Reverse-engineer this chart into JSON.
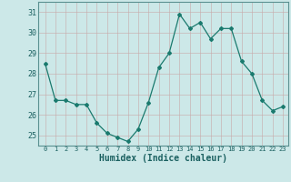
{
  "x": [
    0,
    1,
    2,
    3,
    4,
    5,
    6,
    7,
    8,
    9,
    10,
    11,
    12,
    13,
    14,
    15,
    16,
    17,
    18,
    19,
    20,
    21,
    22,
    23
  ],
  "y": [
    28.5,
    26.7,
    26.7,
    26.5,
    26.5,
    25.6,
    25.1,
    24.9,
    24.7,
    25.3,
    26.6,
    28.3,
    29.0,
    30.9,
    30.2,
    30.5,
    29.7,
    30.2,
    30.2,
    28.6,
    28.0,
    26.7,
    26.2,
    26.4
  ],
  "line_color": "#1a7a6e",
  "marker": "D",
  "marker_size": 2.0,
  "bg_color": "#cce8e8",
  "grid_color_major": "#b0c8c8",
  "grid_color_minor": "#d4e8e8",
  "xlabel": "Humidex (Indice chaleur)",
  "ylim": [
    24.5,
    31.5
  ],
  "yticks": [
    25,
    26,
    27,
    28,
    29,
    30,
    31
  ],
  "xticks": [
    0,
    1,
    2,
    3,
    4,
    5,
    6,
    7,
    8,
    9,
    10,
    11,
    12,
    13,
    14,
    15,
    16,
    17,
    18,
    19,
    20,
    21,
    22,
    23
  ],
  "tick_color": "#1a6060",
  "label_color": "#1a6060",
  "spine_color": "#5a9090"
}
